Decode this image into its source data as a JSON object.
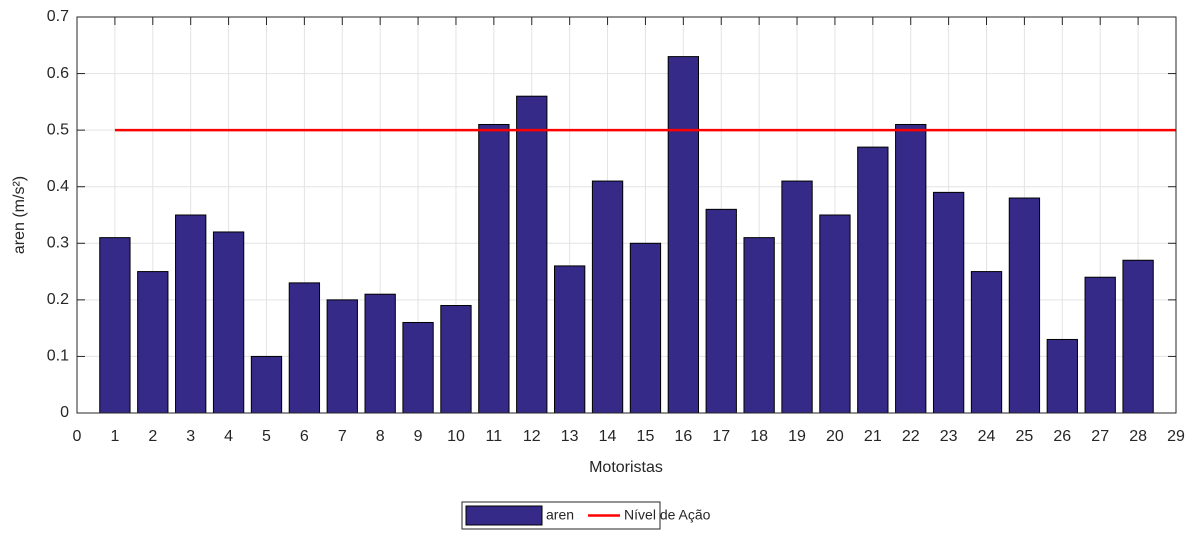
{
  "chart_data": {
    "type": "bar",
    "xlabel": "Motoristas",
    "ylabel": "aren (m/s²)",
    "x": [
      1,
      2,
      3,
      4,
      5,
      6,
      7,
      8,
      9,
      10,
      11,
      12,
      13,
      14,
      15,
      16,
      17,
      18,
      19,
      20,
      21,
      22,
      23,
      24,
      25,
      26,
      27,
      28
    ],
    "series": [
      {
        "name": "aren",
        "type": "bar",
        "color": "#352a87",
        "values": [
          0.31,
          0.25,
          0.35,
          0.32,
          0.1,
          0.23,
          0.2,
          0.21,
          0.16,
          0.19,
          0.51,
          0.56,
          0.26,
          0.41,
          0.3,
          0.63,
          0.36,
          0.31,
          0.41,
          0.35,
          0.47,
          0.51,
          0.39,
          0.25,
          0.38,
          0.13,
          0.24,
          0.27
        ]
      },
      {
        "name": "Nível de Ação",
        "type": "line",
        "color": "#ff0000",
        "x": [
          1,
          29
        ],
        "values": [
          0.5,
          0.5
        ]
      }
    ],
    "xlim": [
      0,
      29
    ],
    "xticks": [
      0,
      1,
      2,
      3,
      4,
      5,
      6,
      7,
      8,
      9,
      10,
      11,
      12,
      13,
      14,
      15,
      16,
      17,
      18,
      19,
      20,
      21,
      22,
      23,
      24,
      25,
      26,
      27,
      28,
      29
    ],
    "ylim": [
      0,
      0.7
    ],
    "yticks": [
      0,
      0.1,
      0.2,
      0.3,
      0.4,
      0.5,
      0.6,
      0.7
    ],
    "grid": true,
    "legend": "bottom"
  }
}
